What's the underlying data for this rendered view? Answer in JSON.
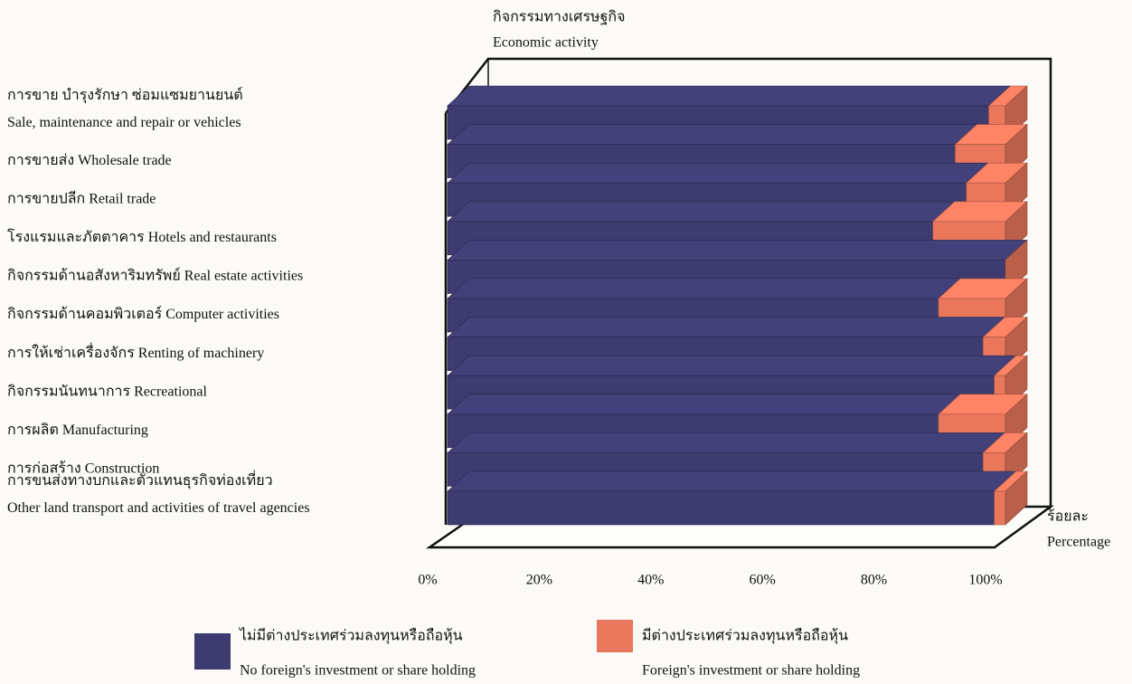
{
  "chart_data": {
    "type": "bar3d_stacked_horizontal",
    "title": [
      "กิจกรรมทางเศรษฐกิจ",
      "Economic activity"
    ],
    "x_label": [
      "ร้อยละ",
      "Percentage"
    ],
    "categories": [
      [
        "การขาย บำรุงรักษา ซ่อมแซมยานยนต์",
        "Sale, maintenance and repair or vehicles"
      ],
      [
        "การขายส่ง  Wholesale trade"
      ],
      [
        "การขายปลีก  Retail trade"
      ],
      [
        "โรงแรมและภัตตาคาร  Hotels and restaurants"
      ],
      [
        "กิจกรรมด้านอสังหาริมทรัพย์  Real estate activities"
      ],
      [
        "กิจกรรมด้านคอมพิวเตอร์  Computer activities"
      ],
      [
        "การให้เช่าเครื่องจักร  Renting of machinery"
      ],
      [
        "กิจกรรมนันทนาการ  Recreational"
      ],
      [
        "การผลิต  Manufacturing"
      ],
      [
        "การก่อสร้าง  Construction"
      ],
      [
        "การขนส่งทางบกและตัวแทนธุรกิจท่องเที่ยว",
        "Other land transport and activities of travel agencies"
      ]
    ],
    "series": [
      {
        "name": [
          "ไม่มีต่างประเทศร่วมลงทุนหรือถือหุ้น",
          "No foreign's investment or share holding"
        ],
        "color": "#3d3b6f",
        "values": [
          97,
          91,
          93,
          87,
          100,
          88,
          96,
          98,
          88,
          96,
          98
        ]
      },
      {
        "name": [
          "มีต่างประเทศร่วมลงทุนหรือถือหุ้น",
          "Foreign's investment or share holding"
        ],
        "color": "#e8775c",
        "values": [
          3,
          9,
          7,
          13,
          0,
          12,
          4,
          2,
          12,
          4,
          2
        ]
      }
    ],
    "xlim": [
      0,
      100
    ],
    "xticks": [
      {
        "value": 0,
        "label": "0%"
      },
      {
        "value": 20,
        "label": "20%"
      },
      {
        "value": 40,
        "label": "40%"
      },
      {
        "value": 60,
        "label": "60%"
      },
      {
        "value": 80,
        "label": "80%"
      },
      {
        "value": 100,
        "label": "100%"
      }
    ]
  }
}
